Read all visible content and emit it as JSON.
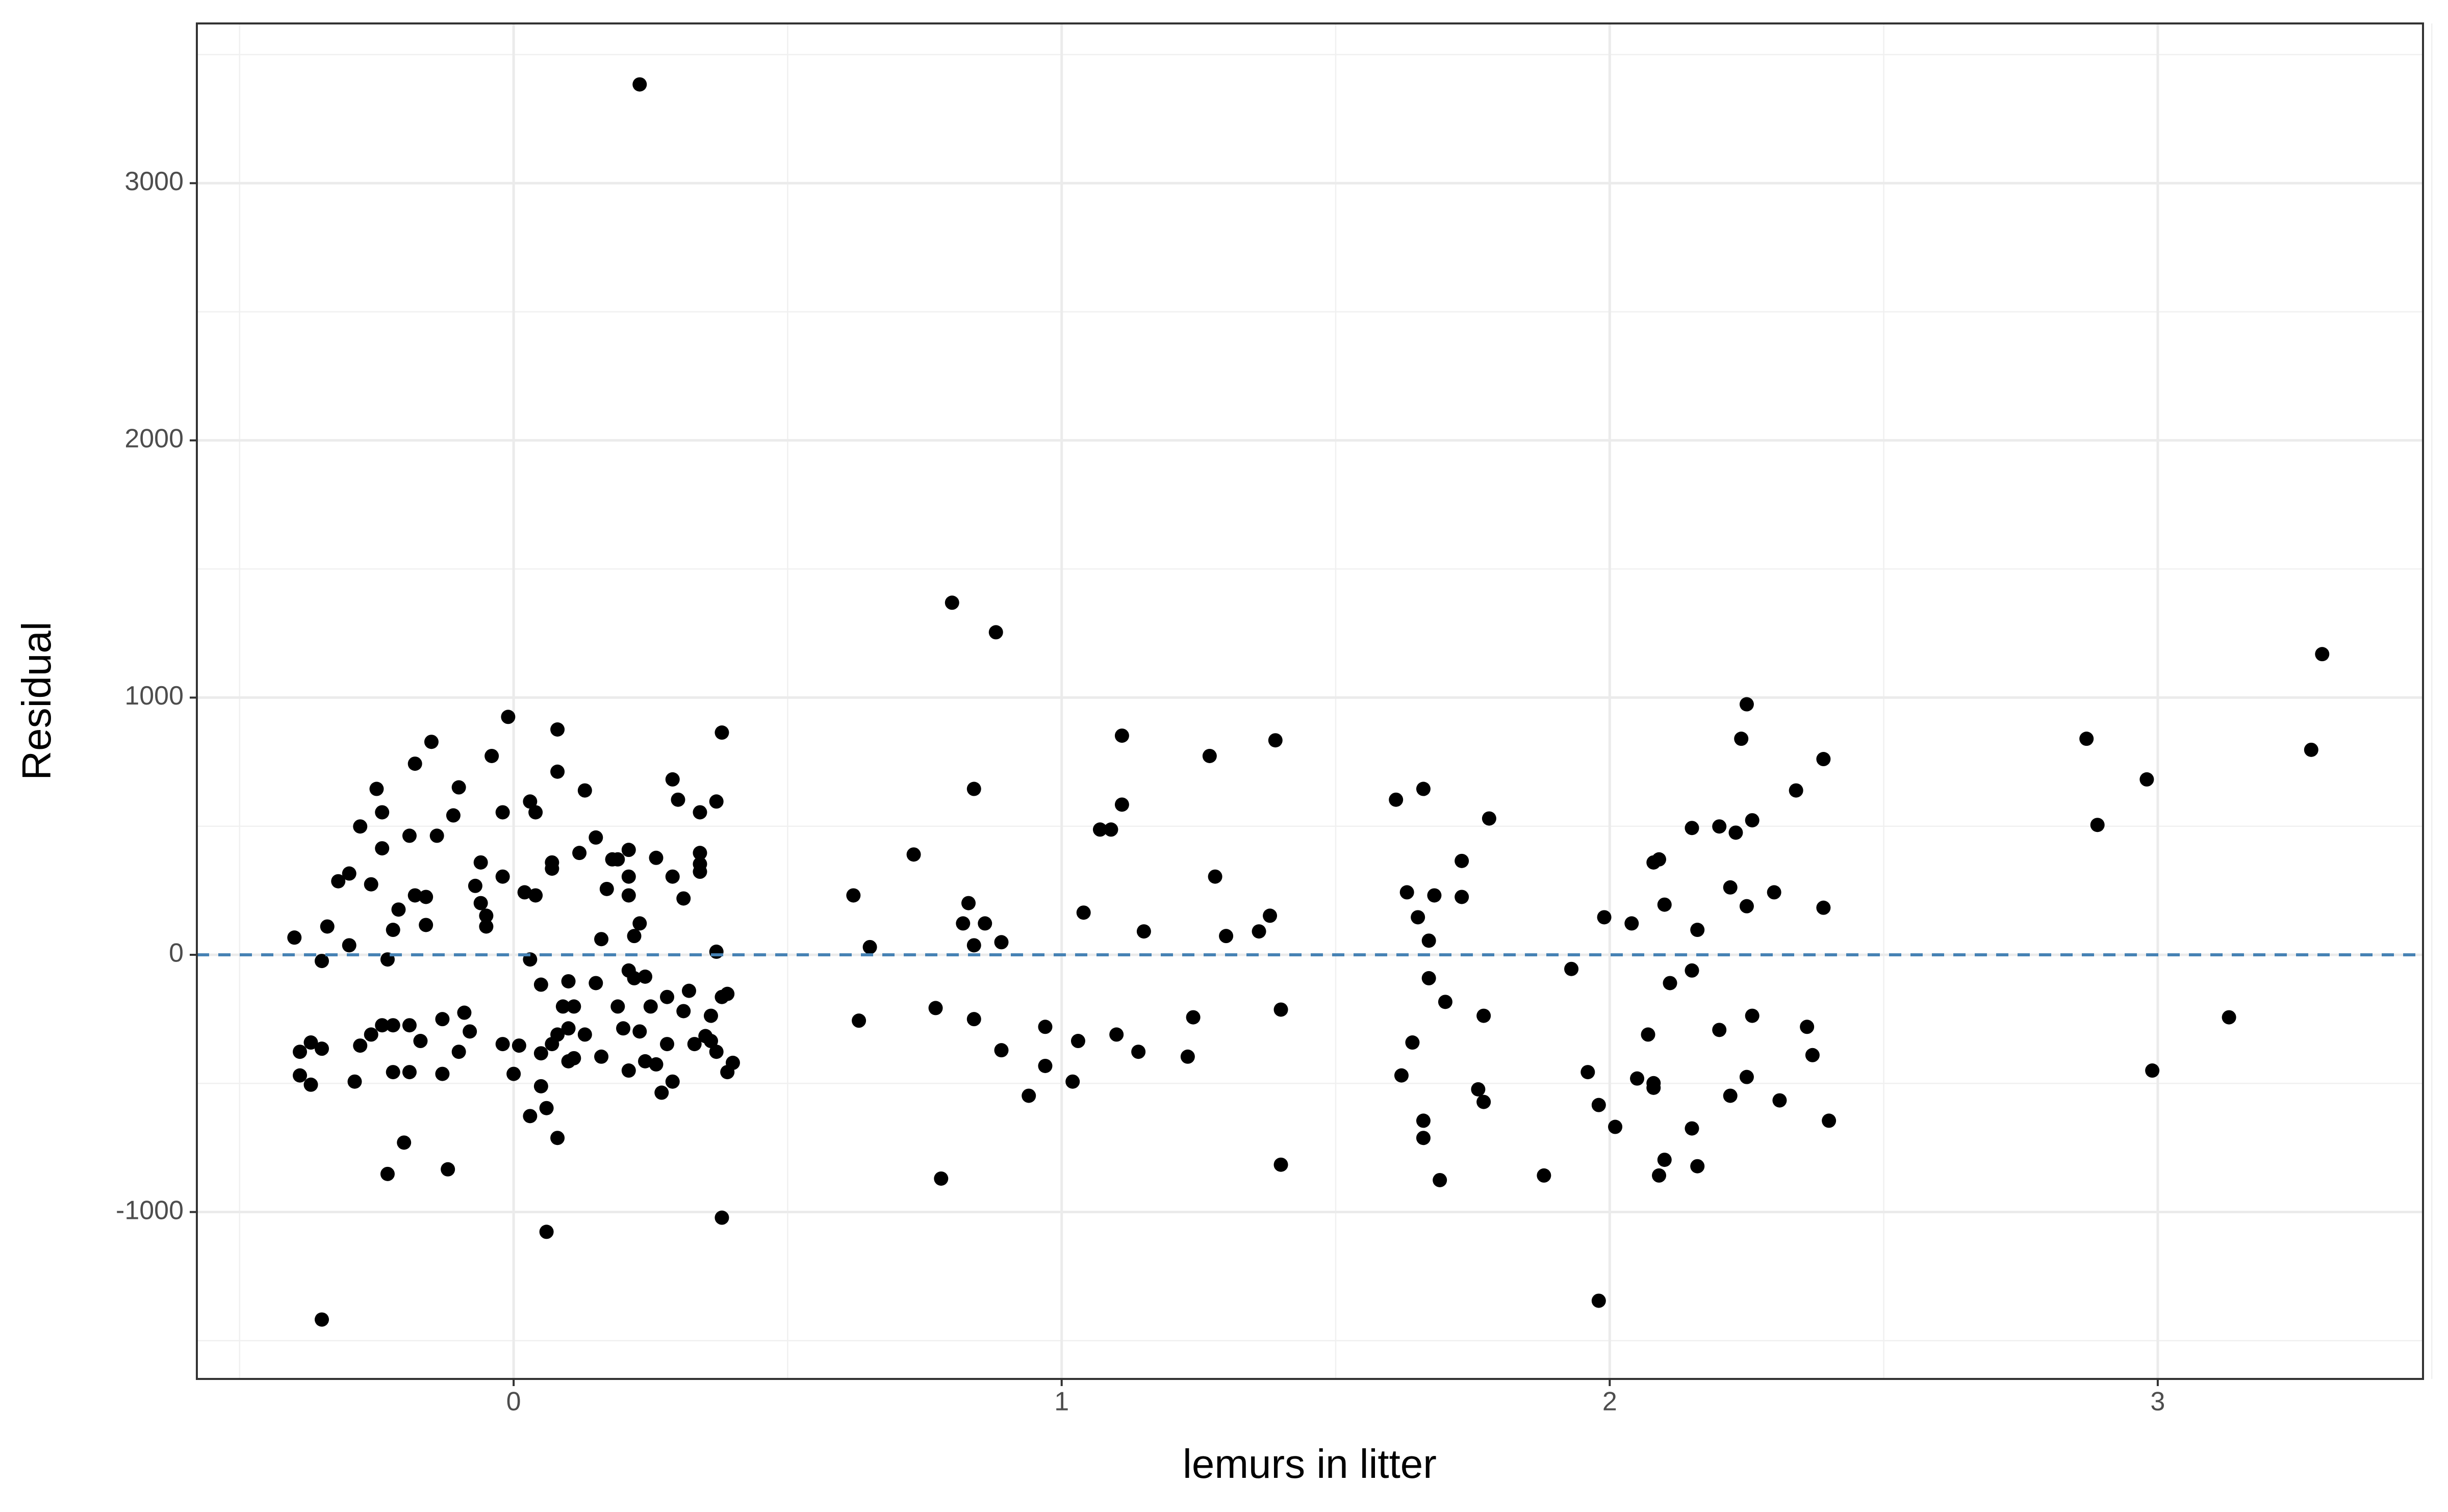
{
  "chart_data": {
    "type": "scatter",
    "xlabel": "lemurs in litter",
    "ylabel": "Residual",
    "xlim": [
      -0.578,
      3.484
    ],
    "ylim": [
      -1649,
      3621
    ],
    "xticks": [
      0,
      1,
      2,
      3
    ],
    "yticks": [
      -1000,
      0,
      1000,
      2000,
      3000
    ],
    "x_minor_ticks": [
      -0.5,
      0.5,
      1.5,
      2.5,
      3.5
    ],
    "y_minor_ticks": [
      -1500,
      -500,
      500,
      1500,
      2500,
      3500
    ],
    "grid": true,
    "color": "#000000",
    "reference_line": {
      "y": 0,
      "color": "#4682b4",
      "style": "dashed"
    },
    "x": [
      -0.4,
      -0.39,
      -0.39,
      -0.37,
      -0.37,
      -0.35,
      -0.35,
      -0.35,
      -0.34,
      -0.32,
      -0.3,
      -0.3,
      -0.28,
      -0.29,
      -0.28,
      -0.26,
      -0.26,
      -0.25,
      -0.24,
      -0.24,
      -0.24,
      -0.23,
      -0.23,
      -0.22,
      -0.22,
      -0.22,
      -0.21,
      -0.2,
      -0.19,
      -0.19,
      -0.19,
      -0.18,
      -0.18,
      -0.17,
      -0.16,
      -0.16,
      -0.15,
      -0.14,
      -0.13,
      -0.13,
      -0.12,
      -0.11,
      -0.1,
      -0.1,
      -0.09,
      -0.08,
      -0.07,
      -0.06,
      -0.06,
      -0.05,
      -0.05,
      -0.04,
      -0.02,
      -0.02,
      -0.02,
      -0.01,
      0.0,
      0.01,
      0.02,
      0.03,
      0.03,
      0.03,
      0.04,
      0.04,
      0.05,
      0.05,
      0.05,
      0.06,
      0.06,
      0.07,
      0.07,
      0.07,
      0.08,
      0.08,
      0.08,
      0.08,
      0.09,
      0.1,
      0.1,
      0.1,
      0.11,
      0.11,
      0.12,
      0.13,
      0.13,
      0.15,
      0.15,
      0.16,
      0.16,
      0.17,
      0.18,
      0.19,
      0.19,
      0.2,
      0.21,
      0.21,
      0.21,
      0.21,
      0.21,
      0.22,
      0.22,
      0.23,
      0.23,
      0.23,
      0.24,
      0.24,
      0.25,
      0.26,
      0.26,
      0.27,
      0.28,
      0.28,
      0.29,
      0.29,
      0.29,
      0.3,
      0.31,
      0.31,
      0.32,
      0.33,
      0.34,
      0.34,
      0.34,
      0.34,
      0.35,
      0.36,
      0.36,
      0.37,
      0.37,
      0.37,
      0.38,
      0.38,
      0.38,
      0.39,
      0.39,
      0.4,
      0.62,
      0.63,
      0.65,
      0.73,
      0.77,
      0.78,
      0.8,
      0.82,
      0.83,
      0.84,
      0.84,
      0.84,
      0.86,
      0.88,
      0.89,
      0.89,
      0.94,
      0.97,
      0.97,
      1.02,
      1.03,
      1.04,
      1.07,
      1.09,
      1.1,
      1.11,
      1.11,
      1.14,
      1.15,
      1.23,
      1.24,
      1.27,
      1.28,
      1.3,
      1.36,
      1.38,
      1.39,
      1.4,
      1.4,
      1.61,
      1.62,
      1.63,
      1.64,
      1.65,
      1.66,
      1.66,
      1.66,
      1.67,
      1.67,
      1.68,
      1.69,
      1.7,
      1.73,
      1.73,
      1.76,
      1.77,
      1.77,
      1.78,
      1.88,
      1.93,
      1.96,
      1.98,
      1.98,
      1.99,
      2.01,
      2.04,
      2.05,
      2.07,
      2.08,
      2.08,
      2.08,
      2.09,
      2.09,
      2.1,
      2.1,
      2.11,
      2.15,
      2.15,
      2.15,
      2.16,
      2.16,
      2.2,
      2.2,
      2.22,
      2.22,
      2.23,
      2.24,
      2.25,
      2.25,
      2.25,
      2.26,
      2.26,
      2.3,
      2.31,
      2.34,
      2.36,
      2.37,
      2.39,
      2.39,
      2.4,
      2.87,
      2.89,
      2.98,
      2.99,
      3.13,
      3.28,
      3.3
    ],
    "y": [
      67,
      -377,
      -469,
      -505,
      -341,
      -365,
      -1418,
      -24,
      110,
      286,
      316,
      37,
      499,
      -493,
      -353,
      274,
      -310,
      645,
      -274,
      554,
      414,
      -852,
      -18,
      97,
      -456,
      -274,
      176,
      -730,
      -274,
      -456,
      463,
      743,
      231,
      -335,
      116,
      225,
      828,
      463,
      -250,
      -463,
      -834,
      542,
      651,
      -377,
      -225,
      -298,
      268,
      201,
      359,
      152,
      110,
      773,
      -347,
      554,
      304,
      925,
      -463,
      -353,
      243,
      596,
      -18,
      -627,
      231,
      554,
      -116,
      -383,
      -511,
      -596,
      -1077,
      335,
      359,
      -347,
      -310,
      876,
      712,
      -712,
      -201,
      -286,
      -103,
      -414,
      -201,
      -402,
      396,
      639,
      -310,
      456,
      -110,
      -396,
      61,
      256,
      371,
      -201,
      371,
      -286,
      -61,
      304,
      408,
      231,
      -450,
      -91,
      73,
      -298,
      122,
      3384,
      -414,
      -85,
      -201,
      377,
      -426,
      -536,
      -164,
      -347,
      682,
      304,
      -493,
      603,
      219,
      -219,
      -140,
      -347,
      554,
      396,
      353,
      323,
      -316,
      -237,
      -335,
      12,
      -377,
      596,
      864,
      -1022,
      -164,
      -456,
      -152,
      -420,
      231,
      -256,
      30,
      390,
      -207,
      -870,
      1369,
      122,
      201,
      645,
      -250,
      37,
      122,
      1254,
      -371,
      49,
      -548,
      -280,
      -432,
      -493,
      -335,
      164,
      487,
      487,
      -310,
      584,
      852,
      -377,
      91,
      -396,
      -243,
      773,
      304,
      73,
      91,
      152,
      834,
      -213,
      -816,
      603,
      -469,
      243,
      -341,
      146,
      -645,
      -712,
      645,
      -91,
      55,
      231,
      -876,
      -183,
      225,
      365,
      -523,
      -572,
      -237,
      530,
      -858,
      -55,
      -456,
      -584,
      -1345,
      146,
      -669,
      122,
      -481,
      -310,
      -517,
      359,
      -499,
      371,
      -858,
      -797,
      195,
      -110,
      493,
      -675,
      -61,
      97,
      -822,
      499,
      -292,
      262,
      -548,
      475,
      840,
      974,
      189,
      -475,
      -237,
      523,
      243,
      -566,
      639,
      -280,
      -390,
      183,
      761,
      -645,
      840,
      505,
      682,
      -450,
      -243,
      797,
      1169
    ]
  }
}
